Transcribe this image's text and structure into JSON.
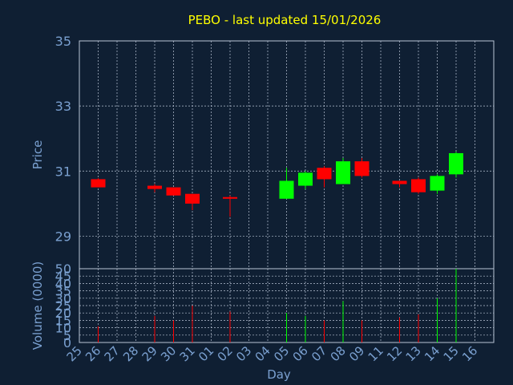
{
  "chart_data": [
    {
      "type": "candlestick",
      "title": "PEBO - last updated 15/01/2026",
      "ylabel": "Price",
      "ylim": [
        28,
        35
      ],
      "y_ticks": [
        29,
        31,
        33,
        35
      ],
      "colors": {
        "up": "#00ff00",
        "down": "#ff0000"
      },
      "grid": true,
      "candles": [
        {
          "x": "26",
          "open": 30.75,
          "high": 30.78,
          "low": 30.5,
          "close": 30.5
        },
        {
          "x": "29",
          "open": 30.55,
          "high": 30.6,
          "low": 30.35,
          "close": 30.45
        },
        {
          "x": "30",
          "open": 30.5,
          "high": 30.5,
          "low": 30.25,
          "close": 30.25
        },
        {
          "x": "31",
          "open": 30.3,
          "high": 30.3,
          "low": 29.8,
          "close": 30.0
        },
        {
          "x": "02",
          "open": 30.2,
          "high": 30.25,
          "low": 29.6,
          "close": 30.15
        },
        {
          "x": "05",
          "open": 30.15,
          "high": 31.1,
          "low": 30.15,
          "close": 30.7
        },
        {
          "x": "06",
          "open": 30.55,
          "high": 31.0,
          "low": 30.45,
          "close": 30.95
        },
        {
          "x": "07",
          "open": 31.1,
          "high": 31.15,
          "low": 30.5,
          "close": 30.75
        },
        {
          "x": "08",
          "open": 30.6,
          "high": 31.4,
          "low": 30.6,
          "close": 31.3
        },
        {
          "x": "09",
          "open": 31.3,
          "high": 31.4,
          "low": 30.8,
          "close": 30.85
        },
        {
          "x": "12",
          "open": 30.7,
          "high": 30.7,
          "low": 30.5,
          "close": 30.6
        },
        {
          "x": "13",
          "open": 30.75,
          "high": 30.8,
          "low": 30.3,
          "close": 30.35
        },
        {
          "x": "14",
          "open": 30.4,
          "high": 30.9,
          "low": 30.3,
          "close": 30.85
        },
        {
          "x": "15",
          "open": 30.9,
          "high": 31.6,
          "low": 30.8,
          "close": 31.55
        }
      ]
    },
    {
      "type": "bar",
      "ylabel": "Volume (0000)",
      "xlabel": "Day",
      "ylim": [
        0,
        50
      ],
      "y_ticks": [
        0,
        5,
        10,
        15,
        20,
        25,
        30,
        35,
        40,
        45,
        50
      ],
      "categories": [
        "25",
        "26",
        "27",
        "28",
        "29",
        "30",
        "31",
        "01",
        "02",
        "03",
        "04",
        "05",
        "06",
        "07",
        "08",
        "09",
        "11",
        "12",
        "13",
        "14",
        "15",
        "16"
      ],
      "volumes": [
        {
          "x": "26",
          "value": 11,
          "color": "#ff0000"
        },
        {
          "x": "29",
          "value": 18,
          "color": "#ff0000"
        },
        {
          "x": "30",
          "value": 15,
          "color": "#ff0000"
        },
        {
          "x": "31",
          "value": 25,
          "color": "#ff0000"
        },
        {
          "x": "02",
          "value": 21,
          "color": "#ff0000"
        },
        {
          "x": "05",
          "value": 20,
          "color": "#00ff00"
        },
        {
          "x": "06",
          "value": 18,
          "color": "#00ff00"
        },
        {
          "x": "07",
          "value": 15,
          "color": "#ff0000"
        },
        {
          "x": "08",
          "value": 28,
          "color": "#00ff00"
        },
        {
          "x": "09",
          "value": 15,
          "color": "#ff0000"
        },
        {
          "x": "12",
          "value": 17,
          "color": "#ff0000"
        },
        {
          "x": "13",
          "value": 19,
          "color": "#ff0000"
        },
        {
          "x": "14",
          "value": 30,
          "color": "#00ff00"
        },
        {
          "x": "15",
          "value": 50,
          "color": "#00ff00"
        }
      ]
    }
  ]
}
